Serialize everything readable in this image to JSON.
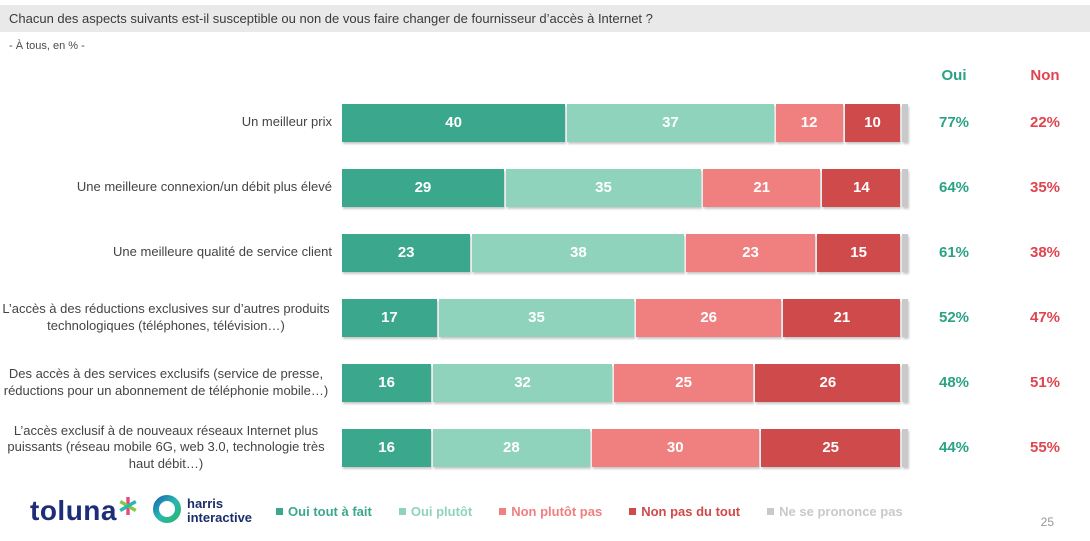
{
  "title": "Chacun des aspects suivants est-il susceptible ou non de vous faire changer de fournisseur d’accès à Internet ?",
  "subtitle": "- À tous, en % -",
  "columns": {
    "oui": "Oui",
    "non": "Non"
  },
  "colors": {
    "oui_text": "#2aa284",
    "non_text": "#e0444e",
    "title_bar_bg": "#e9e9e9",
    "label_text": "#444444"
  },
  "chart_data": {
    "type": "bar",
    "stacked": true,
    "orientation": "horizontal",
    "value_unit": "%",
    "x_range": [
      0,
      100
    ],
    "grid": false,
    "legend_position": "bottom",
    "legend": [
      {
        "label": "Oui tout à fait",
        "color": "#3ba78c",
        "show_value": true
      },
      {
        "label": "Oui plutôt",
        "color": "#8fd3bc",
        "show_value": true
      },
      {
        "label": "Non plutôt pas",
        "color": "#f08080",
        "show_value": true
      },
      {
        "label": "Non pas du tout",
        "color": "#cf4a4a",
        "show_value": true
      },
      {
        "label": "Ne se prononce pas",
        "color": "#c9c9c9",
        "show_value": false
      }
    ],
    "rows": [
      {
        "label": "Un meilleur prix",
        "values": [
          40,
          37,
          12,
          10,
          1
        ],
        "oui": "77%",
        "non": "22%"
      },
      {
        "label": "Une meilleure connexion/un débit plus élevé",
        "values": [
          29,
          35,
          21,
          14,
          1
        ],
        "oui": "64%",
        "non": "35%"
      },
      {
        "label": "Une meilleure qualité de service client",
        "values": [
          23,
          38,
          23,
          15,
          1
        ],
        "oui": "61%",
        "non": "38%"
      },
      {
        "label": "L’accès à des réductions exclusives sur d’autres produits technologiques (téléphones, télévision…)",
        "values": [
          17,
          35,
          26,
          21,
          1
        ],
        "oui": "52%",
        "non": "47%"
      },
      {
        "label": "Des accès à des services exclusifs (service de presse, réductions pour un abonnement de téléphonie mobile…)",
        "values": [
          16,
          32,
          25,
          26,
          1
        ],
        "oui": "48%",
        "non": "51%"
      },
      {
        "label": "L’accès exclusif à de nouveaux réseaux Internet plus puissants (réseau mobile 6G, web 3.0, technologie très haut débit…)",
        "values": [
          16,
          28,
          30,
          25,
          1
        ],
        "oui": "44%",
        "non": "55%"
      }
    ]
  },
  "footer": {
    "toluna": "toluna",
    "harris_line1": "harris",
    "harris_line2": "interactive",
    "page_number": "25"
  }
}
